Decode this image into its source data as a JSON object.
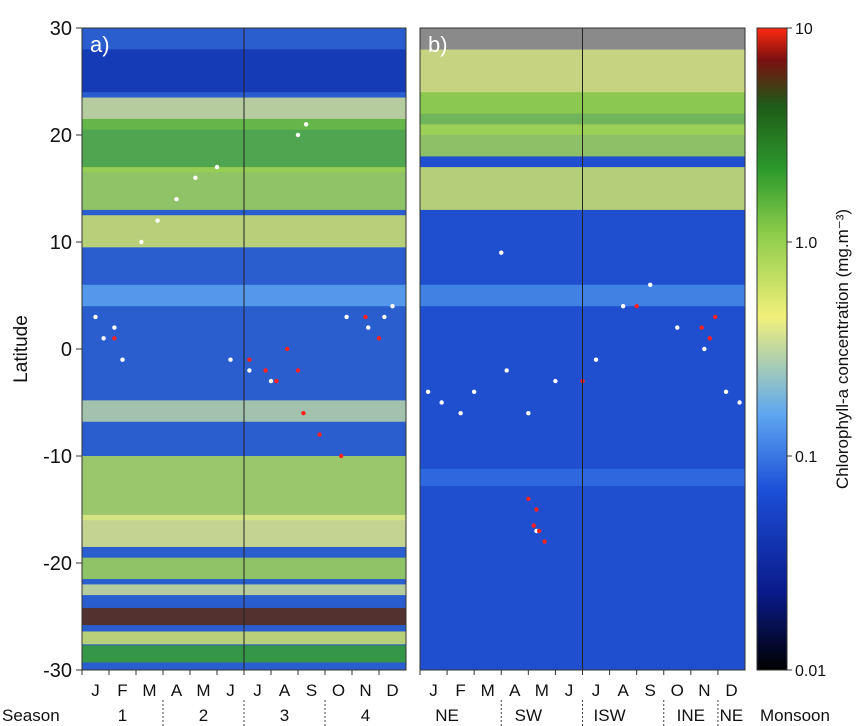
{
  "chart_data": [
    {
      "type": "heatmap",
      "panel_label": "a)",
      "ylabel": "Latitude",
      "ylim": [
        -30,
        30
      ],
      "y_ticks": [
        "30",
        "20",
        "10",
        "0",
        "-10",
        "-20",
        "-30"
      ],
      "y_tick_values": [
        30,
        20,
        10,
        0,
        -10,
        -20,
        -30
      ],
      "month_labels": [
        "J",
        "F",
        "M",
        "A",
        "M",
        "J",
        "J",
        "A",
        "S",
        "O",
        "N",
        "D"
      ],
      "season_row_label": "Season",
      "season_labels": [
        "1",
        "2",
        "3",
        "4"
      ],
      "vertical_line_month": 6,
      "color_bands": [
        {
          "lat": 26.0,
          "half_width": 2.0,
          "chl": 0.04
        },
        {
          "lat": 22.0,
          "half_width": 1.5,
          "chl": 0.35
        },
        {
          "lat": 19.0,
          "half_width": 2.5,
          "chl": 1.6
        },
        {
          "lat": 15.0,
          "half_width": 2.0,
          "chl": 0.9
        },
        {
          "lat": 11.0,
          "half_width": 1.5,
          "chl": 0.6
        },
        {
          "lat": 5.0,
          "half_width": 1.0,
          "chl": 0.15
        },
        {
          "lat": -5.8,
          "half_width": 1.0,
          "chl": 0.3
        },
        {
          "lat": -13.0,
          "half_width": 3.0,
          "chl": 0.8
        },
        {
          "lat": -17.0,
          "half_width": 1.5,
          "chl": 0.4
        },
        {
          "lat": -20.5,
          "half_width": 1.0,
          "chl": 0.9
        },
        {
          "lat": -22.5,
          "half_width": 0.5,
          "chl": 0.35
        },
        {
          "lat": -25.0,
          "half_width": 0.8,
          "chl": 6.0
        },
        {
          "lat": -27.0,
          "half_width": 0.6,
          "chl": 0.6
        },
        {
          "lat": -28.5,
          "half_width": 0.8,
          "chl": 2.0
        }
      ],
      "observations_white": [
        {
          "month": 0.5,
          "lat": 3.0
        },
        {
          "month": 1.2,
          "lat": 2.0
        },
        {
          "month": 0.8,
          "lat": 1.0
        },
        {
          "month": 1.5,
          "lat": -1.0
        },
        {
          "month": 2.2,
          "lat": 10.0
        },
        {
          "month": 2.8,
          "lat": 12.0
        },
        {
          "month": 3.5,
          "lat": 14.0
        },
        {
          "month": 4.2,
          "lat": 16.0
        },
        {
          "month": 5.0,
          "lat": 17.0
        },
        {
          "month": 5.5,
          "lat": -1.0
        },
        {
          "month": 6.2,
          "lat": -2.0
        },
        {
          "month": 7.0,
          "lat": -3.0
        },
        {
          "month": 8.0,
          "lat": 20.0
        },
        {
          "month": 8.3,
          "lat": 21.0
        },
        {
          "month": 9.8,
          "lat": 3.0
        },
        {
          "month": 10.6,
          "lat": 2.0
        },
        {
          "month": 11.5,
          "lat": 4.0
        },
        {
          "month": 11.2,
          "lat": 3.0
        }
      ],
      "observations_red": [
        {
          "month": 6.2,
          "lat": -1.0
        },
        {
          "month": 6.8,
          "lat": -2.0
        },
        {
          "month": 7.2,
          "lat": -3.0
        },
        {
          "month": 7.6,
          "lat": 0.0
        },
        {
          "month": 8.0,
          "lat": -2.0
        },
        {
          "month": 8.2,
          "lat": -6.0
        },
        {
          "month": 8.8,
          "lat": -8.0
        },
        {
          "month": 9.6,
          "lat": -10.0
        },
        {
          "month": 10.5,
          "lat": 3.0
        },
        {
          "month": 11.0,
          "lat": 1.0
        },
        {
          "month": 1.2,
          "lat": 1.0
        }
      ]
    },
    {
      "type": "heatmap",
      "panel_label": "b)",
      "ylim": [
        -30,
        30
      ],
      "month_labels": [
        "J",
        "F",
        "M",
        "A",
        "M",
        "J",
        "J",
        "A",
        "S",
        "O",
        "N",
        "D"
      ],
      "monsoon_labels": [
        "NE",
        "SW",
        "ISW",
        "INE",
        "NE"
      ],
      "monsoon_row_label": "Monsoon",
      "vertical_line_month": 6,
      "missing_above_lat": 28,
      "color_bands": [
        {
          "lat": 25.0,
          "half_width": 3.0,
          "chl": 0.5
        },
        {
          "lat": 22.0,
          "half_width": 2.0,
          "chl": 1.2
        },
        {
          "lat": 19.5,
          "half_width": 1.5,
          "chl": 0.9
        },
        {
          "lat": 15.0,
          "half_width": 2.0,
          "chl": 0.6
        },
        {
          "lat": 5.0,
          "half_width": 1.0,
          "chl": 0.12
        },
        {
          "lat": -12.0,
          "half_width": 0.8,
          "chl": 0.09
        }
      ],
      "observations_white": [
        {
          "month": 0.3,
          "lat": -4.0
        },
        {
          "month": 0.8,
          "lat": -5.0
        },
        {
          "month": 1.5,
          "lat": -6.0
        },
        {
          "month": 2.0,
          "lat": -4.0
        },
        {
          "month": 3.2,
          "lat": -2.0
        },
        {
          "month": 4.0,
          "lat": -6.0
        },
        {
          "month": 5.0,
          "lat": -3.0
        },
        {
          "month": 6.5,
          "lat": -1.0
        },
        {
          "month": 7.5,
          "lat": 4.0
        },
        {
          "month": 8.5,
          "lat": 6.0
        },
        {
          "month": 9.5,
          "lat": 2.0
        },
        {
          "month": 10.5,
          "lat": 0.0
        },
        {
          "month": 11.3,
          "lat": -4.0
        },
        {
          "month": 11.8,
          "lat": -5.0
        },
        {
          "month": 4.3,
          "lat": -17.0
        },
        {
          "month": 3.0,
          "lat": 9.0
        }
      ],
      "observations_red": [
        {
          "month": 4.0,
          "lat": -14.0
        },
        {
          "month": 4.3,
          "lat": -15.0
        },
        {
          "month": 4.4,
          "lat": -17.0
        },
        {
          "month": 4.6,
          "lat": -18.0
        },
        {
          "month": 4.2,
          "lat": -16.5
        },
        {
          "month": 10.4,
          "lat": 2.0
        },
        {
          "month": 10.7,
          "lat": 1.0
        },
        {
          "month": 10.9,
          "lat": 3.0
        },
        {
          "month": 8.0,
          "lat": 4.0
        },
        {
          "month": 6.0,
          "lat": -3.0
        }
      ]
    }
  ],
  "colorbar": {
    "label": "Chlorophyll-a concentration (mg.m⁻³)",
    "ticks": [
      "10",
      "1.0",
      "0.1",
      "0.01"
    ],
    "tick_values": [
      10,
      1,
      0.1,
      0.01
    ],
    "range": [
      0.01,
      10
    ],
    "scale": "log",
    "colors": [
      "#000000",
      "#0a1a8a",
      "#1c4fd8",
      "#5fa8f0",
      "#f1f07a",
      "#8ccc4a",
      "#2c9a2c",
      "#1f5a18",
      "#7a1010",
      "#ff2a10"
    ]
  }
}
